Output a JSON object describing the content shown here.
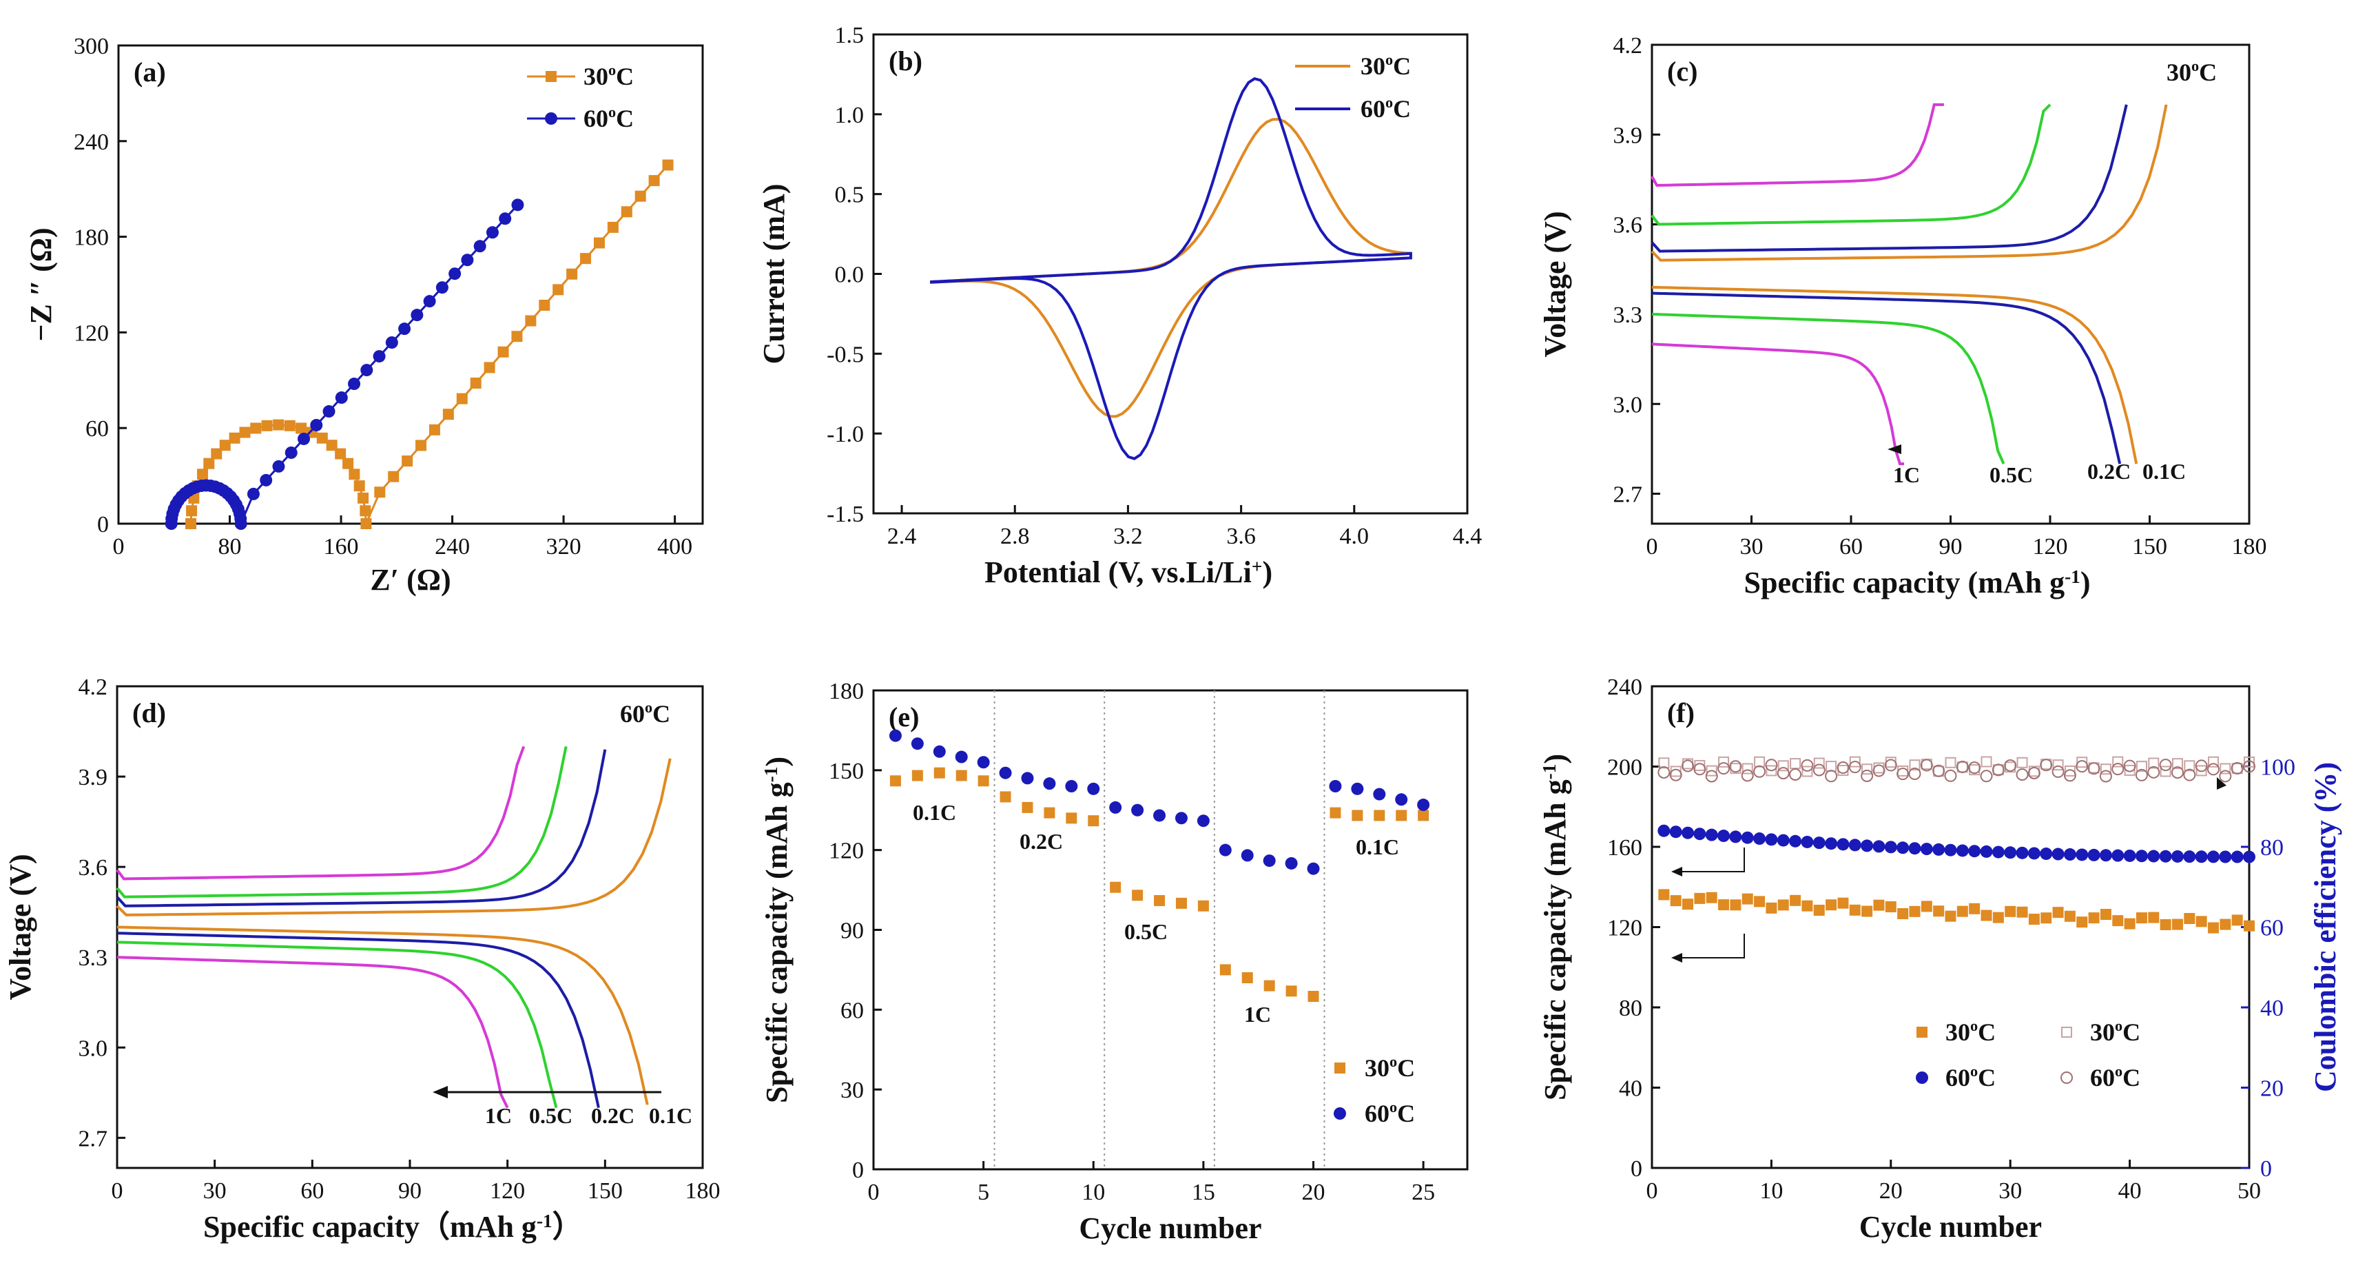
{
  "colors": {
    "orange": "#e08a22",
    "blue": "#1a1ab8",
    "magenta": "#d63ad6",
    "green": "#2fd22f",
    "navy": "#1c1ca8",
    "ce30": "#c8a3a3",
    "ce60": "#a07070"
  },
  "chart_data": [
    {
      "id": "a",
      "type": "line",
      "panel_label": "(a)",
      "xlabel": "Z′ (Ω)",
      "ylabel": "−Z ″ (Ω)",
      "xlim": [
        0,
        420
      ],
      "ylim": [
        0,
        300
      ],
      "xticks": [
        0,
        80,
        160,
        240,
        320,
        400
      ],
      "yticks": [
        0,
        60,
        120,
        180,
        240,
        300
      ],
      "series": [
        {
          "name": "30°C",
          "label_main": "30",
          "label_sup": "o",
          "label_end": "C",
          "color": "#e08a22",
          "marker": "square",
          "points": "semicircle+tail: x from 52 to 395, arc to 178, tail to (395,225)"
        },
        {
          "name": "60°C",
          "label_main": "60",
          "label_sup": "o",
          "label_end": "C",
          "color": "#1a1ab8",
          "marker": "circle",
          "points": "semicircle+tail: x from 38 to 287, arc to 88, tail to (287,200)"
        }
      ]
    },
    {
      "id": "b",
      "type": "line",
      "panel_label": "(b)",
      "xlabel": "Potential (V, vs.Li/Li",
      "xlabel_sup": "+",
      "xlabel_end": ")",
      "ylabel": "Current (mA)",
      "xlim": [
        2.3,
        4.4
      ],
      "ylim": [
        -1.5,
        1.5
      ],
      "xticks": [
        "2.4",
        "2.8",
        "3.2",
        "3.6",
        "4.0",
        "4.4"
      ],
      "yticks": [
        "-1.5",
        "-1.0",
        "-0.5",
        "0.0",
        "0.5",
        "1.0",
        "1.5"
      ],
      "series": [
        {
          "name": "30°C",
          "label_main": "30",
          "label_sup": "o",
          "label_end": "C",
          "color": "#e08a22",
          "anodic_peak": [
            3.72,
            0.91
          ],
          "cathodic_peak": [
            3.15,
            -0.9
          ]
        },
        {
          "name": "60°C",
          "label_main": "60",
          "label_sup": "o",
          "label_end": "C",
          "color": "#1a1ab8",
          "anodic_peak": [
            3.65,
            1.17
          ],
          "cathodic_peak": [
            3.22,
            -1.17
          ]
        }
      ]
    },
    {
      "id": "c",
      "type": "line",
      "panel_label": "(c)",
      "temp_main": "30",
      "temp_sup": "o",
      "temp_end": "C",
      "xlabel": "Specific capacity (mAh g",
      "xlabel_sup": "-1",
      "xlabel_end": ")",
      "ylabel": "Voltage (V)",
      "xlim": [
        0,
        180
      ],
      "ylim": [
        2.6,
        4.2
      ],
      "xticks": [
        0,
        30,
        60,
        90,
        120,
        150,
        180
      ],
      "yticks": [
        "2.7",
        "3.0",
        "3.3",
        "3.6",
        "3.9",
        "4.2"
      ],
      "rates": [
        {
          "label": "1C",
          "color": "#d63ad6",
          "charge_cap": 88,
          "discharge_cap": 76,
          "charge_plateau": 3.73,
          "discharge_plateau": 3.2
        },
        {
          "label": "0.5C",
          "color": "#2fd22f",
          "charge_cap": 120,
          "discharge_cap": 106,
          "charge_plateau": 3.6,
          "discharge_plateau": 3.3
        },
        {
          "label": "0.2C",
          "color": "#1c1ca8",
          "charge_cap": 143,
          "discharge_cap": 141,
          "charge_plateau": 3.51,
          "discharge_plateau": 3.37
        },
        {
          "label": "0.1C",
          "color": "#e08a22",
          "charge_cap": 155,
          "discharge_cap": 146,
          "charge_plateau": 3.48,
          "discharge_plateau": 3.39
        }
      ]
    },
    {
      "id": "d",
      "type": "line",
      "panel_label": "(d)",
      "temp_main": "60",
      "temp_sup": "o",
      "temp_end": "C",
      "xlabel": "Specific capacity（mAh g",
      "xlabel_sup": "-1",
      "xlabel_end": "）",
      "ylabel": "Voltage (V)",
      "xlim": [
        0,
        180
      ],
      "ylim": [
        2.6,
        4.2
      ],
      "xticks": [
        0,
        30,
        60,
        90,
        120,
        150,
        180
      ],
      "yticks": [
        "2.7",
        "3.0",
        "3.3",
        "3.6",
        "3.9",
        "4.2"
      ],
      "rates": [
        {
          "label": "1C",
          "color": "#d63ad6",
          "charge_cap": 125,
          "discharge_cap": 120,
          "charge_plateau": 3.56,
          "discharge_plateau": 3.3
        },
        {
          "label": "0.5C",
          "color": "#2fd22f",
          "charge_cap": 138,
          "discharge_cap": 135,
          "charge_plateau": 3.5,
          "discharge_plateau": 3.35
        },
        {
          "label": "0.2C",
          "color": "#1c1ca8",
          "charge_cap": 150,
          "discharge_cap": 148,
          "charge_plateau": 3.47,
          "discharge_plateau": 3.38
        },
        {
          "label": "0.1C",
          "color": "#e08a22",
          "charge_cap": 170,
          "discharge_cap": 163,
          "charge_plateau": 3.44,
          "discharge_plateau": 3.4
        }
      ]
    },
    {
      "id": "e",
      "type": "scatter",
      "panel_label": "(e)",
      "xlabel": "Cycle number",
      "ylabel": "Specific capacity (mAh g",
      "ylabel_sup": "-1",
      "ylabel_end": ")",
      "xlim": [
        0,
        27
      ],
      "ylim": [
        0,
        180
      ],
      "xticks": [
        0,
        5,
        10,
        15,
        20,
        25
      ],
      "yticks": [
        0,
        30,
        60,
        90,
        120,
        150,
        180
      ],
      "rate_labels": [
        "0.1C",
        "0.2C",
        "0.5C",
        "1C",
        "0.1C"
      ],
      "series": [
        {
          "name": "30°C",
          "label_main": "30",
          "label_sup": "o",
          "label_end": "C",
          "color": "#e08a22",
          "marker": "square",
          "x": [
            1,
            2,
            3,
            4,
            5,
            6,
            7,
            8,
            9,
            10,
            11,
            12,
            13,
            14,
            15,
            16,
            17,
            18,
            19,
            20,
            21,
            22,
            23,
            24,
            25
          ],
          "y": [
            146,
            148,
            149,
            148,
            146,
            140,
            136,
            134,
            132,
            131,
            106,
            103,
            101,
            100,
            99,
            75,
            72,
            69,
            67,
            65,
            134,
            133,
            133,
            133,
            133
          ]
        },
        {
          "name": "60°C",
          "label_main": "60",
          "label_sup": "o",
          "label_end": "C",
          "color": "#1a1ab8",
          "marker": "circle",
          "x": [
            1,
            2,
            3,
            4,
            5,
            6,
            7,
            8,
            9,
            10,
            11,
            12,
            13,
            14,
            15,
            16,
            17,
            18,
            19,
            20,
            21,
            22,
            23,
            24,
            25
          ],
          "y": [
            163,
            160,
            157,
            155,
            153,
            149,
            147,
            145,
            144,
            143,
            136,
            135,
            133,
            132,
            131,
            120,
            118,
            116,
            115,
            113,
            144,
            143,
            141,
            139,
            137
          ]
        }
      ]
    },
    {
      "id": "f",
      "type": "scatter",
      "panel_label": "(f)",
      "xlabel": "Cycle number",
      "ylabel": "Specific capacity (mAh g",
      "ylabel_sup": "-1",
      "ylabel_end": ")",
      "y2label": "Coulombic efficiency (%)",
      "xlim": [
        0,
        50
      ],
      "ylim": [
        0,
        240
      ],
      "y2lim": [
        0,
        120
      ],
      "xticks": [
        0,
        10,
        20,
        30,
        40,
        50
      ],
      "yticks": [
        0,
        40,
        80,
        120,
        160,
        200,
        240
      ],
      "y2ticks": [
        0,
        20,
        40,
        60,
        80,
        100
      ],
      "series": [
        {
          "name": "30°C capacity",
          "label_main": "30",
          "label_sup": "o",
          "label_end": "C",
          "color": "#e08a22",
          "marker": "square",
          "start": 134,
          "end": 121
        },
        {
          "name": "60°C capacity",
          "label_main": "60",
          "label_sup": "o",
          "label_end": "C",
          "color": "#1a1ab8",
          "marker": "circle",
          "start": 168,
          "end": 155
        },
        {
          "name": "30°C CE",
          "label_main": "30",
          "label_sup": "o",
          "label_end": "C",
          "color": "#c8a3a3",
          "marker": "open-square",
          "level": 100
        },
        {
          "name": "60°C CE",
          "label_main": "60",
          "label_sup": "o",
          "label_end": "C",
          "color": "#a07070",
          "marker": "open-circle",
          "level": 99
        }
      ]
    }
  ]
}
